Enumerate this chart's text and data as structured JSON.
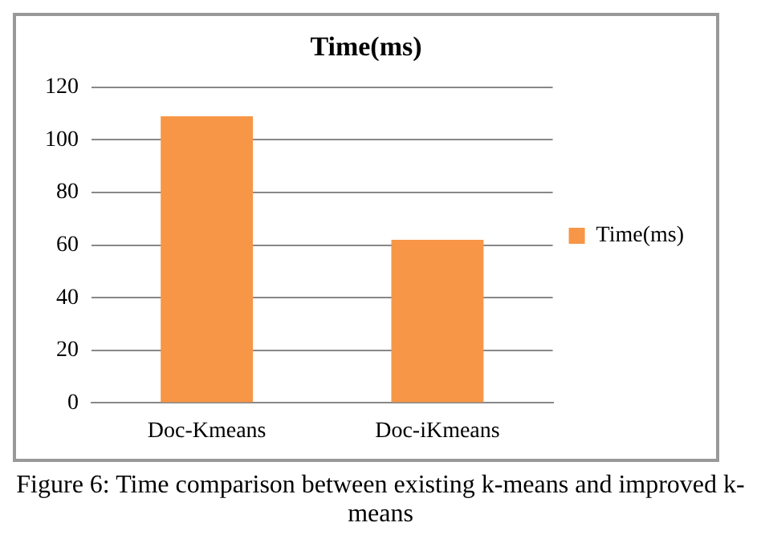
{
  "chart_data": {
    "type": "bar",
    "title": "Time(ms)",
    "categories": [
      "Doc-Kmeans",
      "Doc-iKmeans"
    ],
    "series": [
      {
        "name": "Time(ms)",
        "color": "#f79646",
        "values": [
          109,
          62
        ]
      }
    ],
    "ylim": [
      0,
      120
    ],
    "yticks": [
      0,
      20,
      40,
      60,
      80,
      100,
      120
    ],
    "grid": "y",
    "legend": "right",
    "annotations": [
      "Figure 6: Time comparison between existing k-means and improved k-means"
    ]
  }
}
